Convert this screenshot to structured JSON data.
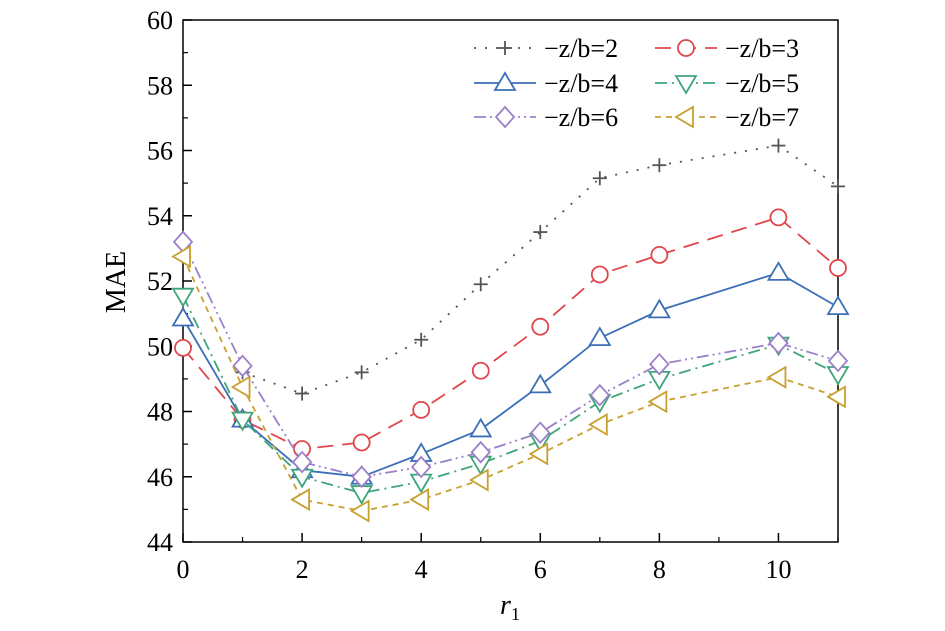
{
  "chart_data": {
    "type": "line",
    "title": "",
    "xlabel": "r",
    "xlabel_subscript": "1",
    "ylabel": "MAE",
    "xlim": [
      0,
      11
    ],
    "ylim": [
      44,
      60
    ],
    "xticks": [
      0,
      2,
      4,
      6,
      8,
      10
    ],
    "xtick_labels": [
      "0",
      "2",
      "4",
      "6",
      "8",
      "10"
    ],
    "yticks": [
      44,
      46,
      48,
      50,
      52,
      54,
      56,
      58,
      60
    ],
    "ytick_labels": [
      "44",
      "46",
      "48",
      "50",
      "52",
      "54",
      "56",
      "58",
      "60"
    ],
    "grid": false,
    "legend_position": "top-right",
    "series": [
      {
        "name": "−z/b=2",
        "color": "#555555",
        "marker": "plus",
        "dash": "dot",
        "points": [
          [
            1,
            49.2
          ],
          [
            2,
            48.55
          ],
          [
            3,
            49.2
          ],
          [
            4,
            50.2
          ],
          [
            5,
            51.9
          ],
          [
            6,
            53.5
          ],
          [
            7,
            55.15
          ],
          [
            8,
            55.55
          ],
          [
            10,
            56.15
          ],
          [
            11,
            54.9
          ]
        ]
      },
      {
        "name": "−z/b=3",
        "color": "#e0474c",
        "marker": "circle",
        "dash": "longdash",
        "points": [
          [
            0,
            49.95
          ],
          [
            1,
            47.75
          ],
          [
            2,
            46.85
          ],
          [
            3,
            47.05
          ],
          [
            4,
            48.05
          ],
          [
            5,
            49.25
          ],
          [
            6,
            50.6
          ],
          [
            7,
            52.2
          ],
          [
            8,
            52.8
          ],
          [
            10,
            53.95
          ],
          [
            11,
            52.4
          ]
        ]
      },
      {
        "name": "−z/b=4",
        "color": "#3b6fb6",
        "marker": "triangle-up",
        "dash": "solid",
        "points": [
          [
            0,
            50.85
          ],
          [
            1,
            47.75
          ],
          [
            2,
            46.2
          ],
          [
            3,
            46.0
          ],
          [
            4,
            46.7
          ],
          [
            5,
            47.45
          ],
          [
            6,
            48.8
          ],
          [
            7,
            50.25
          ],
          [
            8,
            51.1
          ],
          [
            10,
            52.25
          ],
          [
            11,
            51.2
          ]
        ]
      },
      {
        "name": "−z/b=5",
        "color": "#3fa57a",
        "marker": "triangle-down",
        "dash": "dashdot",
        "points": [
          [
            0,
            51.55
          ],
          [
            1,
            47.75
          ],
          [
            2,
            46.0
          ],
          [
            3,
            45.5
          ],
          [
            4,
            45.85
          ],
          [
            5,
            46.4
          ],
          [
            6,
            47.1
          ],
          [
            7,
            48.3
          ],
          [
            8,
            49.0
          ],
          [
            10,
            50.05
          ],
          [
            11,
            49.15
          ]
        ]
      },
      {
        "name": "−z/b=6",
        "color": "#9b7fc9",
        "marker": "diamond",
        "dash": "dashdotdot",
        "points": [
          [
            0,
            53.2
          ],
          [
            1,
            49.4
          ],
          [
            2,
            46.45
          ],
          [
            3,
            46.0
          ],
          [
            4,
            46.3
          ],
          [
            5,
            46.75
          ],
          [
            6,
            47.35
          ],
          [
            7,
            48.5
          ],
          [
            8,
            49.45
          ],
          [
            10,
            50.1
          ],
          [
            11,
            49.55
          ]
        ]
      },
      {
        "name": "−z/b=7",
        "color": "#c8a030",
        "marker": "triangle-left",
        "dash": "shortdash",
        "points": [
          [
            0,
            52.75
          ],
          [
            1,
            48.75
          ],
          [
            2,
            45.3
          ],
          [
            3,
            44.95
          ],
          [
            4,
            45.3
          ],
          [
            5,
            45.9
          ],
          [
            6,
            46.7
          ],
          [
            7,
            47.6
          ],
          [
            8,
            48.3
          ],
          [
            10,
            49.05
          ],
          [
            11,
            48.45
          ]
        ]
      }
    ]
  }
}
